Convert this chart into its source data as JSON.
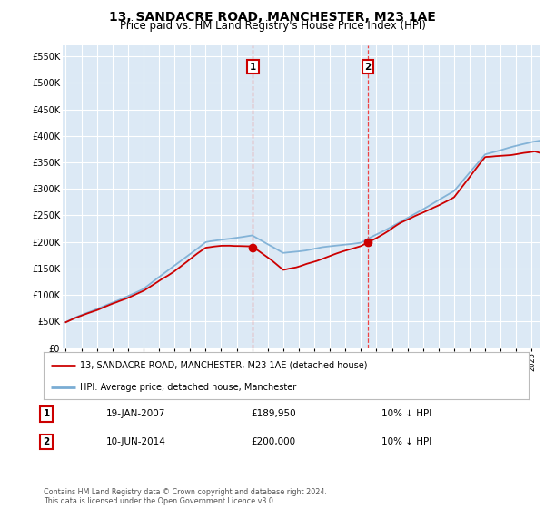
{
  "title": "13, SANDACRE ROAD, MANCHESTER, M23 1AE",
  "subtitle": "Price paid vs. HM Land Registry's House Price Index (HPI)",
  "title_fontsize": 10,
  "subtitle_fontsize": 8.5,
  "legend_line1": "13, SANDACRE ROAD, MANCHESTER, M23 1AE (detached house)",
  "legend_line2": "HPI: Average price, detached house, Manchester",
  "footer": "Contains HM Land Registry data © Crown copyright and database right 2024.\nThis data is licensed under the Open Government Licence v3.0.",
  "sale1_label": "1",
  "sale1_date": "19-JAN-2007",
  "sale1_price": "£189,950",
  "sale1_hpi": "10% ↓ HPI",
  "sale1_year": 2007.05,
  "sale1_value": 189950,
  "sale2_label": "2",
  "sale2_date": "10-JUN-2014",
  "sale2_price": "£200,000",
  "sale2_hpi": "10% ↓ HPI",
  "sale2_year": 2014.44,
  "sale2_value": 200000,
  "ylim": [
    0,
    570000
  ],
  "xlim_start": 1994.8,
  "xlim_end": 2025.5,
  "yticks": [
    0,
    50000,
    100000,
    150000,
    200000,
    250000,
    300000,
    350000,
    400000,
    450000,
    500000,
    550000
  ],
  "background_color": "#ffffff",
  "plot_bg_color": "#dce9f5",
  "grid_color": "#ffffff",
  "red_color": "#cc0000",
  "blue_color": "#7aadd4",
  "dashed_line_color": "#ee4444"
}
